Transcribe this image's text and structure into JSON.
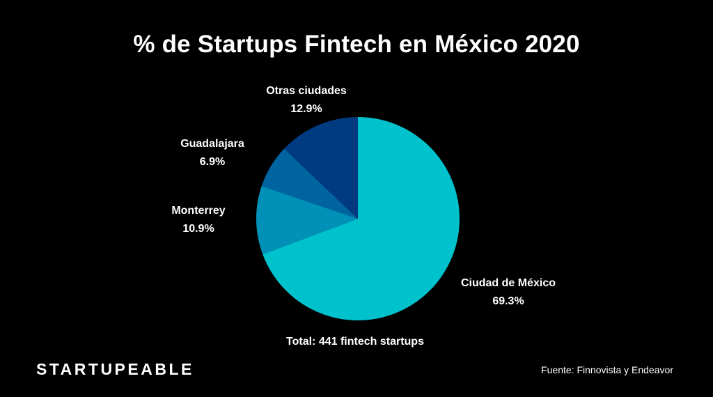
{
  "chart_data": {
    "type": "pie",
    "title": "% de Startups Fintech en México 2020",
    "slices": [
      {
        "label": "Ciudad de México",
        "value": 69.3,
        "display": "69.3%",
        "color": "#00c2cc"
      },
      {
        "label": "Monterrey",
        "value": 10.9,
        "display": "10.9%",
        "color": "#0090b8"
      },
      {
        "label": "Guadalajara",
        "value": 6.9,
        "display": "6.9%",
        "color": "#0064a0"
      },
      {
        "label": "Otras ciudades",
        "value": 12.9,
        "display": "12.9%",
        "color": "#003a80"
      }
    ],
    "start": "12 o'clock",
    "direction": "clockwise",
    "total_note": "Total: 441 fintech startups"
  },
  "brand": "STARTUPEABLE",
  "source": "Fuente: Finnovista y Endeavor"
}
